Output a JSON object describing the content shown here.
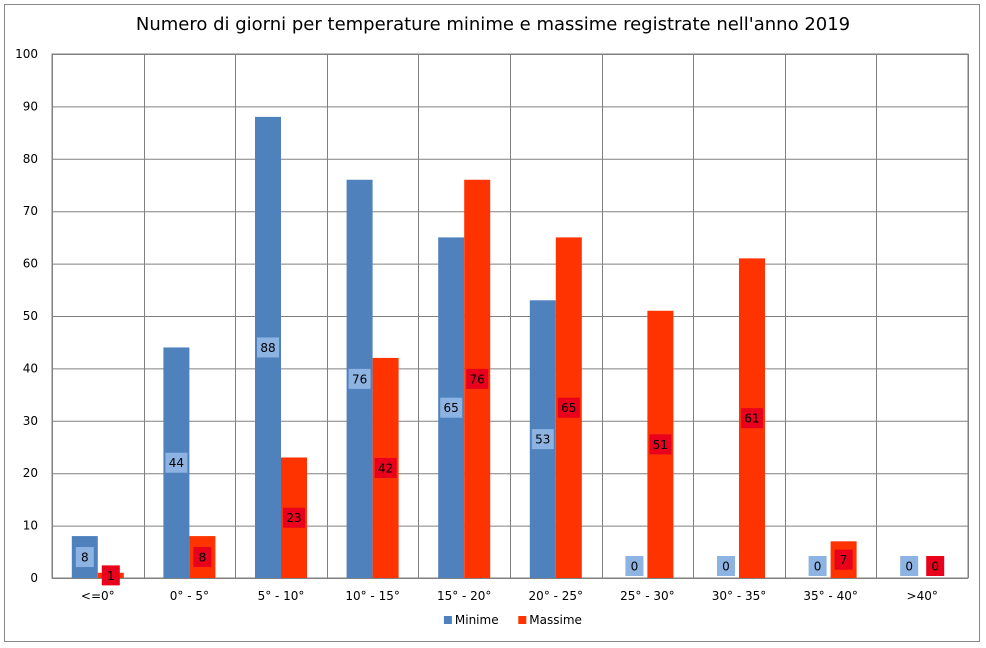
{
  "chart_data": {
    "type": "bar",
    "title": "Numero di giorni per temperature minime e massime registrate nell'anno 2019",
    "categories": [
      "<=0°",
      "0° - 5°",
      "5° - 10°",
      "10° - 15°",
      "15° - 20°",
      "20° - 25°",
      "25° - 30°",
      "30° - 35°",
      "35° - 40°",
      ">40°"
    ],
    "series": [
      {
        "name": "Minime",
        "color": "#4F81BD",
        "label_bg": "#8DB3E2",
        "values": [
          8,
          44,
          88,
          76,
          65,
          53,
          0,
          0,
          0,
          0
        ]
      },
      {
        "name": "Massime",
        "color": "#FF3300",
        "label_bg": "#E8001C",
        "values": [
          1,
          8,
          23,
          42,
          76,
          65,
          51,
          61,
          7,
          0
        ]
      }
    ],
    "ylim": [
      0,
      100
    ],
    "yticks": [
      0,
      10,
      20,
      30,
      40,
      50,
      60,
      70,
      80,
      90,
      100
    ],
    "grid": true,
    "legend_position": "bottom",
    "xlabel": "",
    "ylabel": ""
  }
}
